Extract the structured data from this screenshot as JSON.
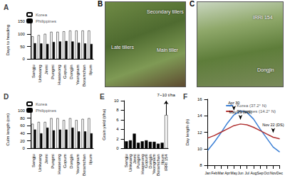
{
  "chart_data": [
    {
      "title": "A",
      "type": "bar",
      "y_label": "Days to heading",
      "categories": [
        "Sangju",
        "Unkwang",
        "Jinmi",
        "Pungmi",
        "Hwaseong",
        "Gopum",
        "Dongjin",
        "Yeongnam",
        "Boramchan",
        "Ilpum"
      ],
      "series": [
        {
          "name": "Korea",
          "color": "#ffffff",
          "values": [
            90,
            95,
            100,
            108,
            108,
            110,
            113,
            113,
            113,
            113
          ]
        },
        {
          "name": "Philippines",
          "color": "#000000",
          "values": [
            63,
            62,
            60,
            68,
            70,
            72,
            70,
            65,
            62,
            60
          ]
        }
      ],
      "ylim": [
        0,
        150
      ],
      "yticks": [
        0,
        50,
        100,
        150
      ],
      "grid": false,
      "legend": "upper left"
    },
    {
      "title": "D",
      "type": "bar",
      "y_label": "Culm length (cm)",
      "categories": [
        "Sangju",
        "Unkwang",
        "Jinmi",
        "Pungmi",
        "Hwaseong",
        "Gopum",
        "Dongjin",
        "Yeongnam",
        "Boramchan",
        "Ilpum"
      ],
      "series": [
        {
          "name": "Korea",
          "color": "#ffffff",
          "values": [
            65,
            70,
            70,
            80,
            80,
            75,
            80,
            75,
            78,
            80
          ]
        },
        {
          "name": "Philippines",
          "color": "#000000",
          "values": [
            50,
            40,
            55,
            48,
            50,
            50,
            55,
            45,
            45,
            40
          ]
        }
      ],
      "ylim": [
        0,
        100
      ],
      "yticks": [
        0,
        20,
        40,
        60,
        80,
        100
      ],
      "grid": false,
      "legend": "upper left"
    },
    {
      "title": "E",
      "type": "bar",
      "y_label": "Grain yield (t/ha)",
      "categories": [
        "Sangju",
        "Unkwang",
        "Jinmi",
        "Pungmi",
        "Hwaseong",
        "Gopum",
        "Dongjin",
        "Yeongnam",
        "Boramchan",
        "Ilpum",
        "IRRI 154"
      ],
      "series": [
        {
          "values": [
            1.5,
            1.7,
            3.1,
            1.2,
            1.5,
            1.7,
            1.4,
            1.4,
            1.0,
            1.2,
            7
          ],
          "colors": [
            "#000000",
            "#000000",
            "#000000",
            "#000000",
            "#000000",
            "#000000",
            "#000000",
            "#000000",
            "#000000",
            "#000000",
            "#ffffff"
          ]
        }
      ],
      "annotations": [
        {
          "text": "7~10 t/ha",
          "x": "IRRI 154",
          "y_range": [
            7,
            10
          ]
        }
      ],
      "ylim": [
        0,
        10
      ],
      "yticks": [
        0,
        2,
        4,
        6,
        8,
        10
      ],
      "grid": false
    },
    {
      "title": "F",
      "type": "line",
      "y_label": "Day length (h)",
      "categories": [
        "Jan",
        "Feb",
        "Mar",
        "Apr",
        "May",
        "Jun",
        "Jul",
        "Aug",
        "Sep",
        "Oct",
        "Nov",
        "Dec"
      ],
      "series": [
        {
          "name": "Korea (37.2° N)",
          "color": "#3a7fd5",
          "values": [
            9.8,
            10.8,
            11.9,
            13.1,
            14.1,
            14.6,
            14.4,
            13.6,
            12.4,
            11.3,
            10.2,
            9.6
          ]
        },
        {
          "name": "Philippines (14.2° N)",
          "color": "#b03030",
          "values": [
            11.3,
            11.6,
            12.0,
            12.4,
            12.8,
            13.0,
            12.9,
            12.6,
            12.2,
            11.8,
            11.4,
            11.2
          ]
        }
      ],
      "annotations": [
        {
          "text": "Apr 30",
          "x": "May",
          "series": "Korea (37.2° N)"
        },
        {
          "text": "May 29 (WS)",
          "x": "Jun",
          "series": "Philippines (14.2° N)"
        },
        {
          "text": "Nov 22 (DS)",
          "x": "Nov",
          "series": "Philippines (14.2° N)"
        }
      ],
      "ylim": [
        8,
        16
      ],
      "yticks": [
        8,
        10,
        12,
        14,
        16
      ],
      "grid": false,
      "legend": "upper right"
    }
  ],
  "photos": [
    {
      "title": "B",
      "labels": [
        "Secondary tillers",
        "Late tillers",
        "Main tiller"
      ]
    },
    {
      "title": "C",
      "labels": [
        "IRRI 154",
        "Dongjin"
      ]
    }
  ]
}
